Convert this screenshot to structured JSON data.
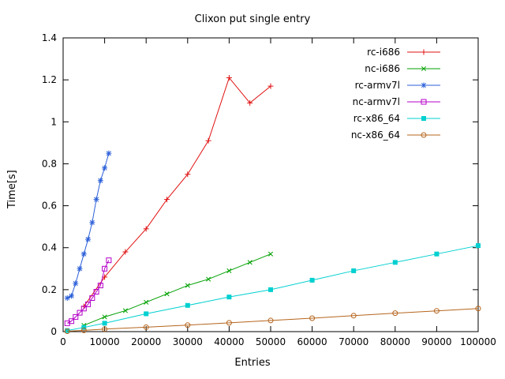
{
  "chart_data": {
    "type": "line",
    "title": "Clixon put single entry",
    "xlabel": "Entries",
    "ylabel": "Time[s]",
    "xlim": [
      0,
      100000
    ],
    "ylim": [
      0,
      1.4
    ],
    "grid": false,
    "legend_position": "top-right",
    "x_ticks": [
      0,
      10000,
      20000,
      30000,
      40000,
      50000,
      60000,
      70000,
      80000,
      90000,
      100000
    ],
    "x_tick_labels": [
      "0",
      "10000",
      "20000",
      "30000",
      "40000",
      "50000",
      "60000",
      "70000",
      "80000",
      "90000",
      "100000"
    ],
    "y_ticks": [
      0,
      0.2,
      0.4,
      0.6,
      0.8,
      1.0,
      1.2,
      1.4
    ],
    "y_tick_labels": [
      "0",
      "0.2",
      "0.4",
      "0.6",
      "0.8",
      "1",
      "1.2",
      "1.4"
    ],
    "series": [
      {
        "name": "rc-i686",
        "color": "#e01010",
        "marker": "plus",
        "x": [
          5000,
          10000,
          15000,
          20000,
          25000,
          30000,
          35000,
          40000,
          45000,
          50000
        ],
        "y": [
          0.12,
          0.26,
          0.38,
          0.49,
          0.63,
          0.75,
          0.91,
          1.21,
          1.09,
          1.17
        ]
      },
      {
        "name": "nc-i686",
        "color": "#00a000",
        "marker": "cross",
        "x": [
          5000,
          10000,
          15000,
          20000,
          25000,
          30000,
          35000,
          40000,
          45000,
          50000
        ],
        "y": [
          0.03,
          0.07,
          0.1,
          0.14,
          0.18,
          0.22,
          0.25,
          0.29,
          0.33,
          0.37
        ]
      },
      {
        "name": "rc-armv7l",
        "color": "#2b5fd9",
        "marker": "asterisk",
        "x": [
          1000,
          2000,
          3000,
          4000,
          5000,
          6000,
          7000,
          8000,
          9000,
          10000,
          11000
        ],
        "y": [
          0.16,
          0.17,
          0.23,
          0.3,
          0.37,
          0.44,
          0.52,
          0.63,
          0.72,
          0.78,
          0.85
        ]
      },
      {
        "name": "nc-armv7l",
        "color": "#b400c8",
        "marker": "square-open",
        "x": [
          1000,
          2000,
          3000,
          4000,
          5000,
          6000,
          7000,
          8000,
          9000,
          10000,
          11000
        ],
        "y": [
          0.04,
          0.05,
          0.07,
          0.09,
          0.11,
          0.13,
          0.16,
          0.19,
          0.22,
          0.3,
          0.34
        ]
      },
      {
        "name": "rc-x86_64",
        "color": "#00d0d0",
        "marker": "square-filled",
        "x": [
          1000,
          5000,
          10000,
          20000,
          30000,
          40000,
          50000,
          60000,
          70000,
          80000,
          90000,
          100000
        ],
        "y": [
          0.005,
          0.02,
          0.04,
          0.085,
          0.125,
          0.165,
          0.2,
          0.245,
          0.29,
          0.33,
          0.37,
          0.41
        ]
      },
      {
        "name": "nc-x86_64",
        "color": "#b5651d",
        "marker": "circle-open",
        "x": [
          1000,
          5000,
          10000,
          20000,
          30000,
          40000,
          50000,
          60000,
          70000,
          80000,
          90000,
          100000
        ],
        "y": [
          0.002,
          0.006,
          0.012,
          0.021,
          0.031,
          0.042,
          0.053,
          0.064,
          0.076,
          0.088,
          0.099,
          0.11
        ]
      }
    ]
  }
}
